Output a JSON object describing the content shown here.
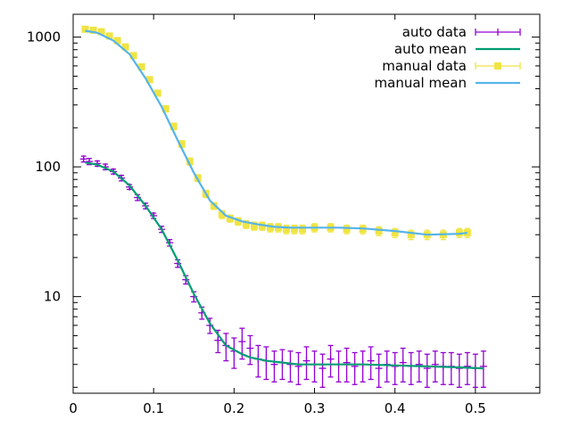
{
  "chart_data": {
    "type": "scatter",
    "title": "",
    "xlabel": "",
    "ylabel": "",
    "xlim": [
      0,
      0.58
    ],
    "ylim": [
      1.8,
      1500
    ],
    "y_scale": "log",
    "x_ticks": [
      "0",
      "0.1",
      "0.2",
      "0.3",
      "0.4",
      "0.5"
    ],
    "x_tick_values": [
      0,
      0.1,
      0.2,
      0.3,
      0.4,
      0.5
    ],
    "y_ticks": [
      "10",
      "100",
      "1000"
    ],
    "y_tick_values": [
      10,
      100,
      1000
    ],
    "grid": false,
    "legend_position": "top-right",
    "series": [
      {
        "name": "auto data",
        "style": "points-with-errorbars",
        "marker": "plus",
        "color": "#9400d3",
        "x": [
          0.013,
          0.02,
          0.03,
          0.04,
          0.05,
          0.06,
          0.07,
          0.08,
          0.09,
          0.1,
          0.11,
          0.12,
          0.13,
          0.14,
          0.15,
          0.16,
          0.17,
          0.18,
          0.19,
          0.2,
          0.21,
          0.22,
          0.23,
          0.24,
          0.25,
          0.26,
          0.27,
          0.28,
          0.29,
          0.3,
          0.31,
          0.32,
          0.33,
          0.34,
          0.35,
          0.36,
          0.37,
          0.38,
          0.39,
          0.4,
          0.41,
          0.42,
          0.43,
          0.44,
          0.45,
          0.46,
          0.47,
          0.48,
          0.49,
          0.5,
          0.51
        ],
        "y": [
          115,
          110,
          106,
          100,
          92,
          82,
          70,
          58,
          50,
          42,
          33,
          26,
          18,
          13.5,
          10,
          7.5,
          6,
          4.6,
          4.2,
          3.8,
          4.5,
          4.0,
          3.3,
          3.2,
          3.0,
          3.1,
          3.0,
          2.9,
          3.2,
          3.0,
          2.8,
          3.3,
          3.0,
          3.1,
          2.9,
          3.0,
          3.2,
          2.8,
          3.0,
          2.9,
          3.1,
          2.9,
          3.0,
          2.8,
          3.0,
          2.9,
          2.9,
          2.8,
          2.9,
          2.8,
          2.9
        ],
        "y_err": [
          6,
          6,
          5,
          5,
          4,
          4,
          3,
          3,
          2.5,
          2,
          1.8,
          1.5,
          1.2,
          1,
          0.9,
          0.8,
          0.8,
          0.9,
          1.0,
          1.0,
          1.2,
          1.0,
          0.9,
          0.9,
          0.8,
          0.8,
          0.8,
          0.8,
          0.9,
          0.8,
          0.8,
          0.9,
          0.8,
          0.9,
          0.8,
          0.8,
          0.9,
          0.8,
          0.8,
          0.8,
          0.9,
          0.8,
          0.8,
          0.8,
          0.8,
          0.8,
          0.8,
          0.8,
          0.8,
          0.8,
          0.9
        ]
      },
      {
        "name": "auto mean",
        "style": "line",
        "color": "#009e73",
        "x": [
          0.015,
          0.03,
          0.05,
          0.07,
          0.09,
          0.11,
          0.13,
          0.15,
          0.17,
          0.19,
          0.21,
          0.22,
          0.23,
          0.24,
          0.26,
          0.28,
          0.3,
          0.33,
          0.36,
          0.4,
          0.44,
          0.48,
          0.51
        ],
        "y": [
          108,
          104,
          92,
          72,
          50,
          33,
          19,
          10.5,
          6.2,
          4.2,
          3.6,
          3.4,
          3.3,
          3.2,
          3.1,
          3.0,
          3.0,
          3.0,
          3.0,
          2.95,
          2.9,
          2.85,
          2.8
        ]
      },
      {
        "name": "manual data",
        "style": "points-with-errorbars",
        "marker": "filled-square",
        "color": "#f0e442",
        "x": [
          0.015,
          0.025,
          0.035,
          0.045,
          0.055,
          0.065,
          0.075,
          0.085,
          0.095,
          0.105,
          0.115,
          0.125,
          0.135,
          0.145,
          0.155,
          0.165,
          0.175,
          0.185,
          0.195,
          0.205,
          0.215,
          0.225,
          0.235,
          0.245,
          0.255,
          0.265,
          0.275,
          0.285,
          0.3,
          0.32,
          0.34,
          0.36,
          0.38,
          0.4,
          0.42,
          0.44,
          0.46,
          0.48,
          0.49
        ],
        "y": [
          1150,
          1130,
          1100,
          1020,
          940,
          840,
          720,
          590,
          470,
          370,
          280,
          205,
          150,
          110,
          82,
          62,
          50,
          43,
          40,
          38,
          36,
          35,
          35,
          34,
          34,
          33,
          33,
          33,
          34,
          34,
          33,
          33,
          32,
          31,
          30,
          30,
          30,
          31,
          31
        ],
        "y_err": [
          40,
          40,
          40,
          40,
          35,
          35,
          30,
          25,
          20,
          18,
          15,
          12,
          9,
          7,
          5,
          4,
          3,
          3,
          2.5,
          2.5,
          2.5,
          2.5,
          2.5,
          2.5,
          2.5,
          2.5,
          2.5,
          2.5,
          2.5,
          2.5,
          2.5,
          2.5,
          2.5,
          2.5,
          2.5,
          2.5,
          2.5,
          2.5,
          2.5
        ]
      },
      {
        "name": "manual mean",
        "style": "line",
        "color": "#56b4e9",
        "x": [
          0.015,
          0.03,
          0.05,
          0.07,
          0.09,
          0.11,
          0.13,
          0.15,
          0.17,
          0.19,
          0.21,
          0.23,
          0.25,
          0.27,
          0.3,
          0.33,
          0.36,
          0.4,
          0.44,
          0.48,
          0.49
        ],
        "y": [
          1120,
          1080,
          940,
          740,
          480,
          290,
          160,
          90,
          55,
          42,
          38,
          36,
          34.5,
          34,
          34,
          34,
          33.5,
          32,
          30,
          30.5,
          31
        ]
      }
    ]
  }
}
